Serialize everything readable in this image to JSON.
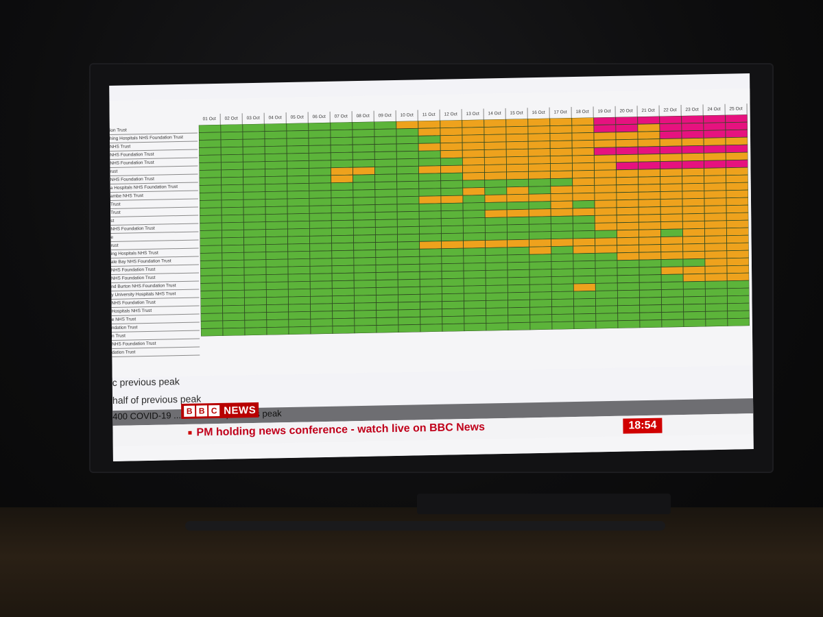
{
  "colors": {
    "green": "#5cb43a",
    "amber": "#eea21d",
    "magenta": "#e6127f",
    "bbc_red": "#b80000",
    "headline_red": "#c0001a"
  },
  "chart": {
    "date_headers": [
      "01 Oct",
      "02 Oct",
      "03 Oct",
      "04 Oct",
      "05 Oct",
      "06 Oct",
      "07 Oct",
      "08 Oct",
      "09 Oct",
      "10 Oct",
      "11 Oct",
      "12 Oct",
      "13 Oct",
      "14 Oct",
      "15 Oct",
      "16 Oct",
      "17 Oct",
      "18 Oct",
      "19 Oct",
      "20 Oct",
      "21 Oct",
      "22 Oct",
      "23 Oct",
      "24 Oct",
      "25 Oct"
    ],
    "row_labels": [
      "ion Trust",
      "hing Hospitals NHS Foundation Trust",
      "NHS Trust",
      "NHS Foundation Trust",
      "NHS Foundation Trust",
      "rust",
      "NHS Foundation Trust",
      "a Hospitals NHS Foundation Trust",
      "ambe NHS Trust",
      "Trust",
      "Trust",
      "st",
      "NHS Foundation Trust",
      "e",
      "rust",
      "ing Hospitals NHS Trust",
      "ale Bay NHS Foundation Trust",
      "NHS Foundation Trust",
      "NHS Foundation Trust",
      "nd Burton NHS Foundation Trust",
      "y University Hospitals NHS Trust",
      "NHS Foundation Trust",
      "Hospitals NHS Trust",
      "e NHS Trust",
      "ndation Trust",
      "n Trust",
      "NHS Foundation Trust",
      "dation Trust"
    ],
    "status_grid": [
      "GGGGGGGGGAAAAAAAAAMMMMMMM",
      "GGGGGGGGGGAAAAAAAAMMAMMMM",
      "GGGGGGGGGGGAAAAAAAAAAMMMM",
      "GGGGGGGGGGAAAAAAAAAAAAAAA",
      "GGGGGGGGGGGAAAAAAAMMMMMMM",
      "GGGGGGGGGGGGAAAAAAAAAAAAA",
      "GGGGGGAAGGAAAAAAAAAMMMMMM",
      "GGGGGGAGGGGGAAAAAAAAAAAAA",
      "GGGGGGGGGGGGGGGGGAAAAAAAA",
      "GGGGGGGGGGGGAGAGAAAAAAAAA",
      "GGGGGGGGGGAAGAAAAAAAAAAAA",
      "GGGGGGGGGGGGGGGGAGAAAAAAA",
      "GGGGGGGGGGGGGAAAAAAAAAAAA",
      "GGGGGGGGGGGGGGGGGGAAAAAAA",
      "GGGGGGGGGGGGGGGGGGAAAAAAA",
      "GGGGGGGGGGGGGGGGGGGAAGAAA",
      "GGGGGGGGGGAAAAAAAAAAAAAAA",
      "GGGGGGGGGGGGGGGAGAAAAAAAA",
      "GGGGGGGGGGGGGGGGGGGAAAAAA",
      "GGGGGGGGGGGGGGGGGGGGGGGAA",
      "GGGGGGGGGGGGGGGGGGGGGAAAA",
      "GGGGGGGGGGGGGGGGGGGGGGAAA",
      "GGGGGGGGGGGGGGGGGAGGGGGGG",
      "GGGGGGGGGGGGGGGGGGGGGGGGG",
      "GGGGGGGGGGGGGGGGGGGGGGGGG",
      "GGGGGGGGGGGGGGGGGGGGGGGGG",
      "GGGGGGGGGGGGGGGGGGGGGGGGG",
      "GGGGGGGGGGGGGGGGGGGGGGGGG"
    ]
  },
  "captions": {
    "line1": "c previous peak",
    "line2": "half of previous peak",
    "line3": "400 COVID-19 ... low half of previous peak"
  },
  "broadcast": {
    "logo_letters": [
      "B",
      "B",
      "C"
    ],
    "logo_word": "NEWS",
    "headline": "PM holding news conference - watch live on BBC News",
    "clock": "18:54"
  }
}
